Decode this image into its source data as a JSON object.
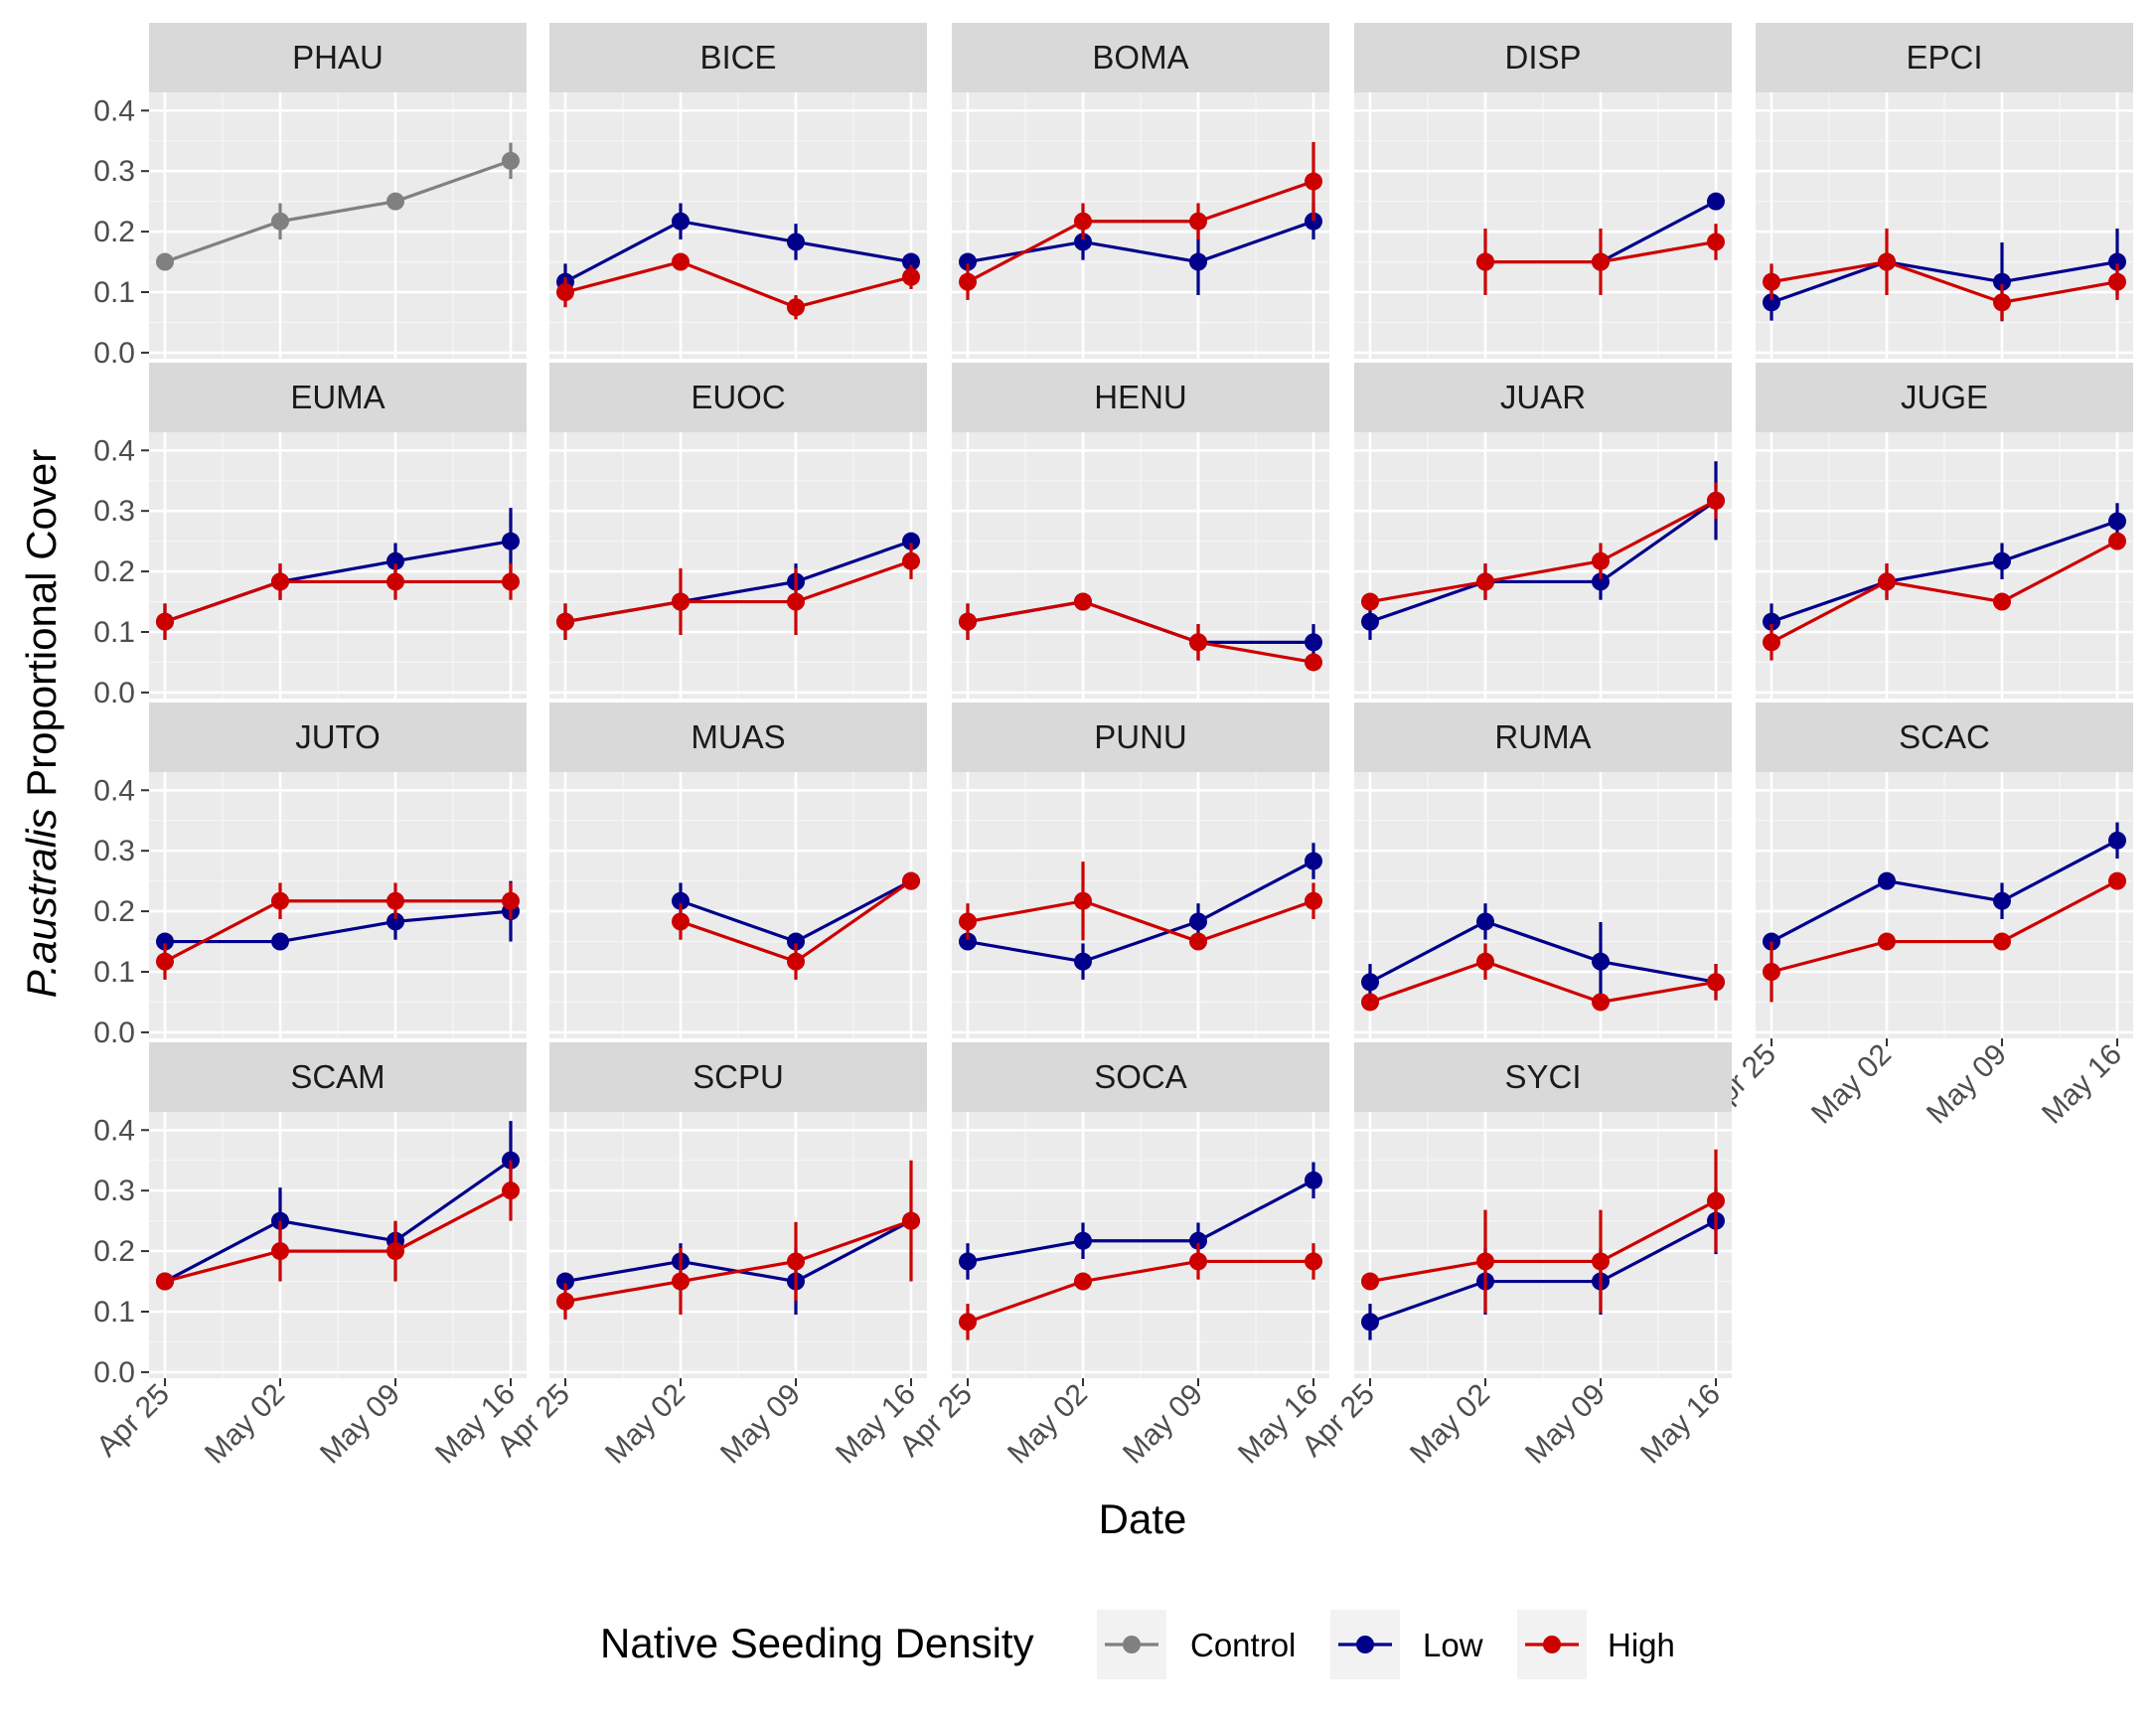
{
  "chart_data": {
    "type": "line",
    "xlabel": "Date",
    "ylabel_italic": "P.australis",
    "ylabel_rest": " Proportional Cover",
    "x_ticks": [
      "Apr 25",
      "May 02",
      "May 09",
      "May 16"
    ],
    "y_ticks": [
      "0.0",
      "0.1",
      "0.2",
      "0.3",
      "0.4"
    ],
    "ylim": [
      -0.01,
      0.43
    ],
    "grid": true,
    "legend": {
      "title": "Native Seeding Density",
      "position": "bottom",
      "items": [
        {
          "label": "Control",
          "color": "#808080"
        },
        {
          "label": "Low",
          "color": "#00008B"
        },
        {
          "label": "High",
          "color": "#CD0000"
        }
      ]
    },
    "panels": [
      {
        "name": "PHAU",
        "series": [
          {
            "group": "Control",
            "values": [
              0.15,
              0.217,
              0.25,
              0.317
            ],
            "err": [
              0.008,
              0.03,
              0.008,
              0.03
            ]
          }
        ]
      },
      {
        "name": "BICE",
        "series": [
          {
            "group": "Low",
            "values": [
              0.117,
              0.217,
              0.183,
              0.15
            ],
            "err": [
              0.03,
              0.03,
              0.03,
              0.008
            ]
          },
          {
            "group": "High",
            "values": [
              0.1,
              0.15,
              0.075,
              0.125
            ],
            "err": [
              0.025,
              0.008,
              0.02,
              0.02
            ]
          }
        ]
      },
      {
        "name": "BOMA",
        "series": [
          {
            "group": "Low",
            "values": [
              0.15,
              0.183,
              0.15,
              0.217
            ],
            "err": [
              0.008,
              0.03,
              0.055,
              0.03
            ]
          },
          {
            "group": "High",
            "values": [
              0.117,
              0.217,
              0.217,
              0.283
            ],
            "err": [
              0.03,
              0.03,
              0.03,
              0.065
            ]
          }
        ]
      },
      {
        "name": "DISP",
        "series": [
          {
            "group": "Low",
            "values": [
              null,
              0.15,
              0.15,
              0.25
            ],
            "err": [
              0,
              0.008,
              0.008,
              0.008
            ]
          },
          {
            "group": "High",
            "values": [
              null,
              0.15,
              0.15,
              0.183
            ],
            "err": [
              0,
              0.055,
              0.055,
              0.03
            ]
          }
        ]
      },
      {
        "name": "EPCI",
        "series": [
          {
            "group": "Low",
            "values": [
              0.083,
              0.15,
              0.117,
              0.15
            ],
            "err": [
              0.03,
              0.008,
              0.065,
              0.055
            ]
          },
          {
            "group": "High",
            "values": [
              0.117,
              0.15,
              0.083,
              0.117
            ],
            "err": [
              0.03,
              0.055,
              0.03,
              0.03
            ]
          }
        ]
      },
      {
        "name": "EUMA",
        "series": [
          {
            "group": "Low",
            "values": [
              0.117,
              0.183,
              0.217,
              0.25
            ],
            "err": [
              0.03,
              0.03,
              0.03,
              0.055
            ]
          },
          {
            "group": "High",
            "values": [
              0.117,
              0.183,
              0.183,
              0.183
            ],
            "err": [
              0.03,
              0.03,
              0.03,
              0.03
            ]
          }
        ]
      },
      {
        "name": "EUOC",
        "series": [
          {
            "group": "Low",
            "values": [
              0.117,
              0.15,
              0.183,
              0.25
            ],
            "err": [
              0.03,
              0.008,
              0.03,
              0.008
            ]
          },
          {
            "group": "High",
            "values": [
              0.117,
              0.15,
              0.15,
              0.217
            ],
            "err": [
              0.03,
              0.055,
              0.055,
              0.03
            ]
          }
        ]
      },
      {
        "name": "HENU",
        "series": [
          {
            "group": "Low",
            "values": [
              0.117,
              0.15,
              0.083,
              0.083
            ],
            "err": [
              0.03,
              0.008,
              0.03,
              0.03
            ]
          },
          {
            "group": "High",
            "values": [
              0.117,
              0.15,
              0.083,
              0.05
            ],
            "err": [
              0.03,
              0.008,
              0.03,
              0.008
            ]
          }
        ]
      },
      {
        "name": "JUAR",
        "series": [
          {
            "group": "Low",
            "values": [
              0.117,
              0.183,
              0.183,
              0.317
            ],
            "err": [
              0.03,
              0.03,
              0.03,
              0.065
            ]
          },
          {
            "group": "High",
            "values": [
              0.15,
              0.183,
              0.217,
              0.317
            ],
            "err": [
              0.008,
              0.03,
              0.03,
              0.03
            ]
          }
        ]
      },
      {
        "name": "JUGE",
        "series": [
          {
            "group": "Low",
            "values": [
              0.117,
              0.183,
              0.217,
              0.283
            ],
            "err": [
              0.03,
              0.03,
              0.03,
              0.03
            ]
          },
          {
            "group": "High",
            "values": [
              0.083,
              0.183,
              0.15,
              0.25
            ],
            "err": [
              0.03,
              0.03,
              0.008,
              0.008
            ]
          }
        ]
      },
      {
        "name": "JUTO",
        "series": [
          {
            "group": "Low",
            "values": [
              0.15,
              0.15,
              0.183,
              0.2
            ],
            "err": [
              0.008,
              0.008,
              0.03,
              0.05
            ]
          },
          {
            "group": "High",
            "values": [
              0.117,
              0.217,
              0.217,
              0.217
            ],
            "err": [
              0.03,
              0.03,
              0.03,
              0.03
            ]
          }
        ]
      },
      {
        "name": "MUAS",
        "series": [
          {
            "group": "Low",
            "values": [
              null,
              0.217,
              0.15,
              0.25
            ],
            "err": [
              0,
              0.03,
              0.008,
              0.008
            ]
          },
          {
            "group": "High",
            "values": [
              null,
              0.183,
              0.117,
              0.25
            ],
            "err": [
              0,
              0.03,
              0.03,
              0.008
            ]
          }
        ]
      },
      {
        "name": "PUNU",
        "series": [
          {
            "group": "Low",
            "values": [
              0.15,
              0.117,
              0.183,
              0.283
            ],
            "err": [
              0.008,
              0.03,
              0.03,
              0.03
            ]
          },
          {
            "group": "High",
            "values": [
              0.183,
              0.217,
              0.15,
              0.217
            ],
            "err": [
              0.03,
              0.065,
              0.008,
              0.03
            ]
          }
        ]
      },
      {
        "name": "RUMA",
        "series": [
          {
            "group": "Low",
            "values": [
              0.083,
              0.183,
              0.117,
              0.083
            ],
            "err": [
              0.03,
              0.03,
              0.065,
              0.03
            ]
          },
          {
            "group": "High",
            "values": [
              0.05,
              0.117,
              0.05,
              0.083
            ],
            "err": [
              0.008,
              0.03,
              0.008,
              0.03
            ]
          }
        ]
      },
      {
        "name": "SCAC",
        "series": [
          {
            "group": "Low",
            "values": [
              0.15,
              0.25,
              0.217,
              0.317
            ],
            "err": [
              0.008,
              0.008,
              0.03,
              0.03
            ]
          },
          {
            "group": "High",
            "values": [
              0.1,
              0.15,
              0.15,
              0.25
            ],
            "err": [
              0.05,
              0.008,
              0.008,
              0.008
            ]
          }
        ]
      },
      {
        "name": "SCAM",
        "series": [
          {
            "group": "Low",
            "values": [
              0.15,
              0.25,
              0.217,
              0.35
            ],
            "err": [
              0.008,
              0.055,
              0.03,
              0.065
            ]
          },
          {
            "group": "High",
            "values": [
              0.15,
              0.2,
              0.2,
              0.3
            ],
            "err": [
              0.008,
              0.05,
              0.05,
              0.05
            ]
          }
        ]
      },
      {
        "name": "SCPU",
        "series": [
          {
            "group": "Low",
            "values": [
              0.15,
              0.183,
              0.15,
              0.25
            ],
            "err": [
              0.008,
              0.03,
              0.055,
              0.008
            ]
          },
          {
            "group": "High",
            "values": [
              0.117,
              0.15,
              0.183,
              0.25
            ],
            "err": [
              0.03,
              0.055,
              0.065,
              0.1
            ]
          }
        ]
      },
      {
        "name": "SOCA",
        "series": [
          {
            "group": "Low",
            "values": [
              0.183,
              0.217,
              0.217,
              0.317
            ],
            "err": [
              0.03,
              0.03,
              0.03,
              0.03
            ]
          },
          {
            "group": "High",
            "values": [
              0.083,
              0.15,
              0.183,
              0.183
            ],
            "err": [
              0.03,
              0.008,
              0.03,
              0.03
            ]
          }
        ]
      },
      {
        "name": "SYCI",
        "series": [
          {
            "group": "Low",
            "values": [
              0.083,
              0.15,
              0.15,
              0.25
            ],
            "err": [
              0.03,
              0.055,
              0.055,
              0.055
            ]
          },
          {
            "group": "High",
            "values": [
              0.15,
              0.183,
              0.183,
              0.283
            ],
            "err": [
              0.008,
              0.085,
              0.085,
              0.085
            ]
          }
        ]
      }
    ]
  }
}
